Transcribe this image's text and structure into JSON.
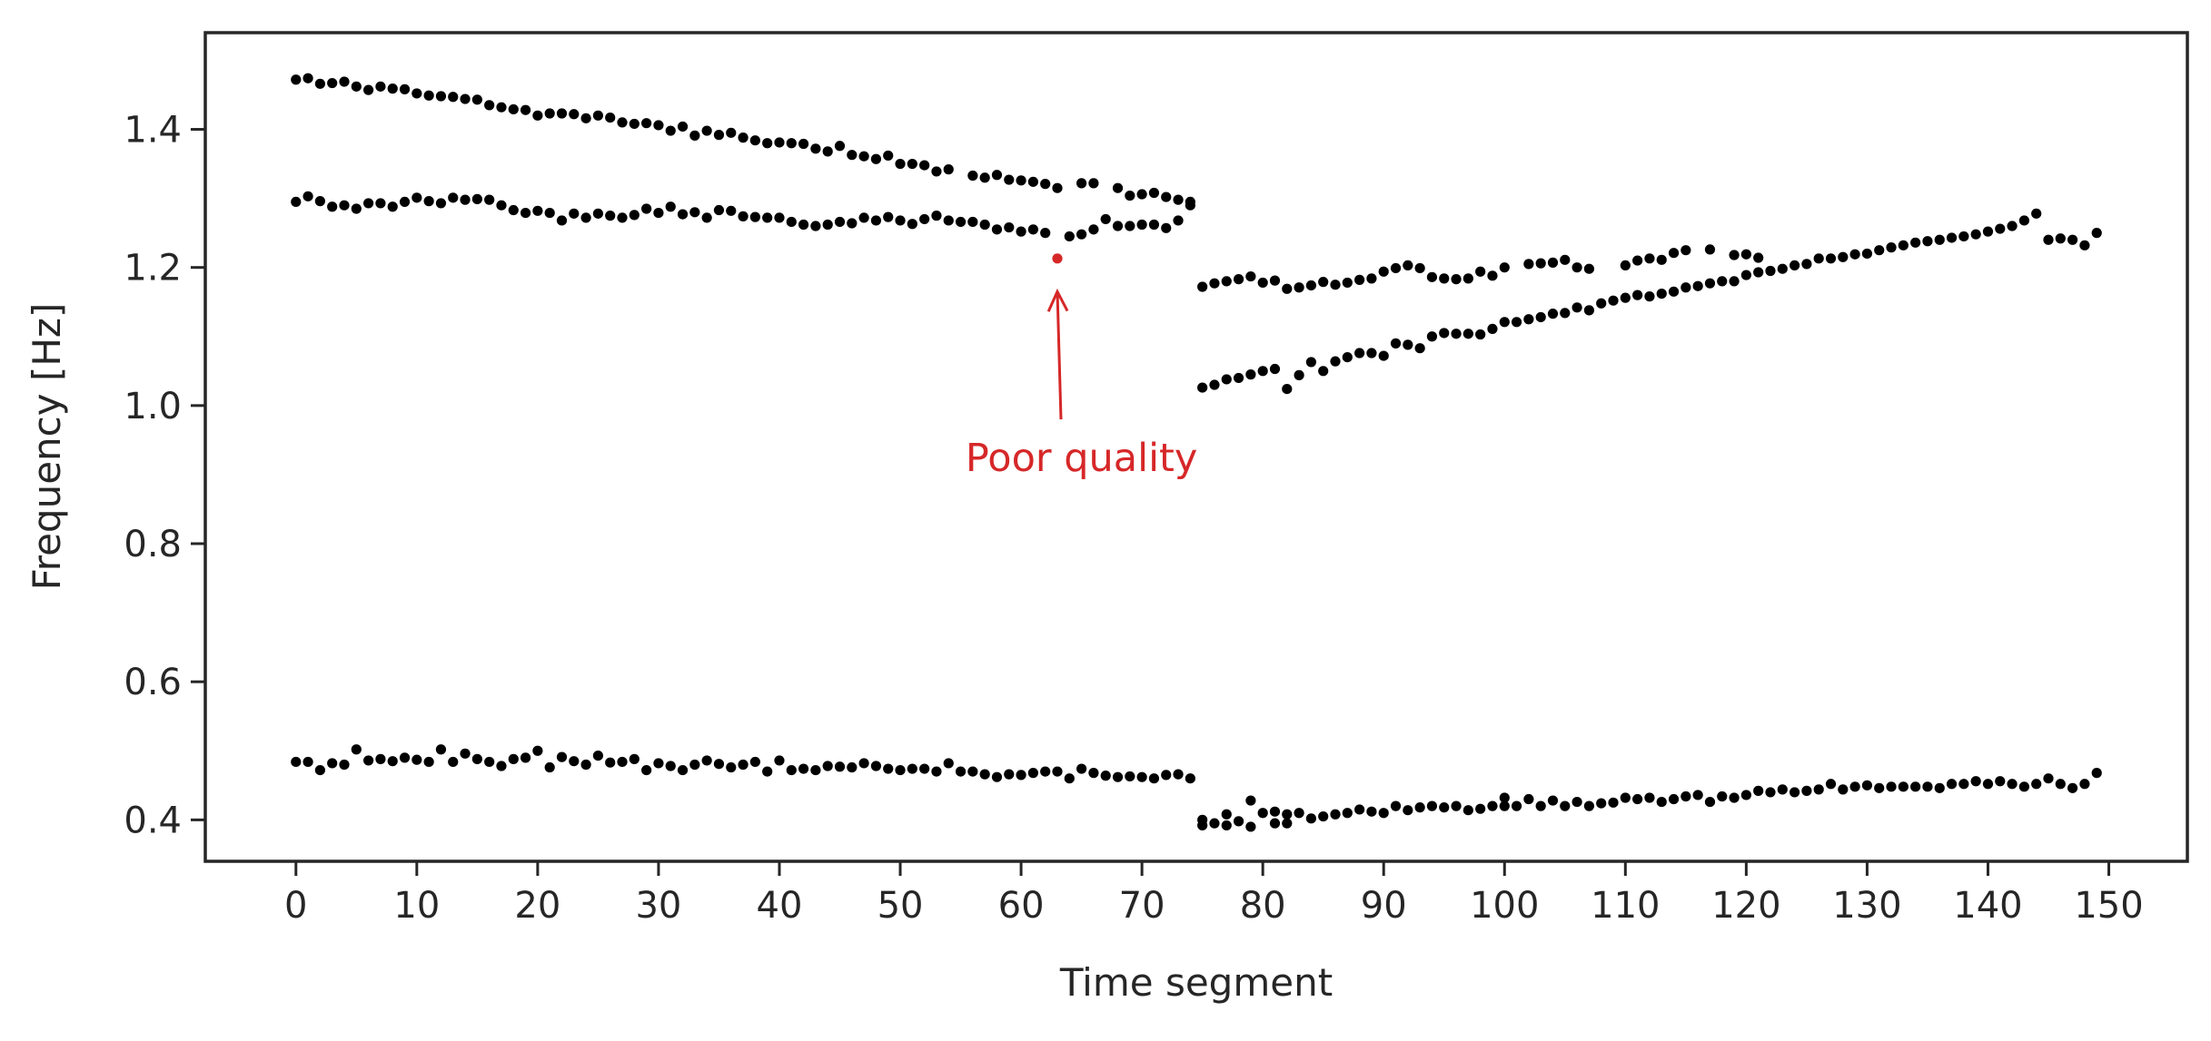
{
  "chart_data": {
    "type": "scatter",
    "title": "",
    "xlabel": "Time segment",
    "ylabel": "Frequency [Hz]",
    "xlim": [
      -7.5,
      156.5
    ],
    "ylim": [
      0.34,
      1.54
    ],
    "xticks": [
      0,
      10,
      20,
      30,
      40,
      50,
      60,
      70,
      80,
      90,
      100,
      110,
      120,
      130,
      140,
      150
    ],
    "xtick_labels": [
      "0",
      "10",
      "20",
      "30",
      "40",
      "50",
      "60",
      "70",
      "80",
      "90",
      "100",
      "110",
      "120",
      "130",
      "140",
      "150"
    ],
    "yticks": [
      0.4,
      0.6,
      0.8,
      1.0,
      1.2,
      1.4
    ],
    "ytick_labels": [
      "0.4",
      "0.6",
      "0.8",
      "1.0",
      "1.2",
      "1.4"
    ],
    "grid": false,
    "legend": "none",
    "point_color": "#000000",
    "series": [
      {
        "x": [
          0,
          1,
          2,
          3,
          4,
          5,
          6,
          7,
          8,
          9,
          10,
          11,
          12,
          13,
          14,
          15,
          16,
          17,
          18,
          19,
          20,
          21,
          22,
          23,
          24,
          25,
          26,
          27,
          28,
          29,
          30,
          31,
          32,
          33,
          34,
          35,
          36,
          37,
          38,
          39,
          40,
          41,
          42,
          43,
          44,
          45,
          46,
          47,
          48,
          49,
          50,
          51,
          52,
          53,
          54,
          55,
          56,
          57,
          58,
          59,
          60,
          61,
          62,
          63,
          64,
          65,
          66,
          67,
          68,
          69,
          70,
          71,
          72,
          73,
          74
        ],
        "y": [
          1.472,
          1.474,
          1.466,
          1.467,
          1.469,
          1.462,
          1.457,
          1.462,
          1.459,
          1.458,
          1.452,
          1.449,
          1.448,
          1.447,
          1.444,
          1.443,
          1.435,
          1.432,
          1.429,
          1.428,
          1.42,
          1.423,
          1.423,
          1.422,
          1.416,
          1.42,
          1.417,
          1.41,
          1.408,
          1.409,
          1.406,
          1.398,
          1.404,
          1.391,
          1.398,
          1.392,
          1.395,
          1.388,
          1.384,
          1.38,
          1.381,
          1.38,
          1.379,
          1.372,
          1.368,
          1.376,
          1.363,
          1.361,
          1.357,
          1.362,
          1.35,
          1.35,
          1.348,
          1.339,
          1.342,
          null,
          1.333,
          1.33,
          1.334,
          1.327,
          1.326,
          1.324,
          1.321,
          1.315,
          null,
          1.322,
          1.322,
          null,
          1.315,
          1.304,
          1.306,
          1.308,
          1.302,
          1.298,
          1.295
        ]
      },
      {
        "x": [
          0,
          1,
          2,
          3,
          4,
          5,
          6,
          7,
          8,
          9,
          10,
          11,
          12,
          13,
          14,
          15,
          16,
          17,
          18,
          19,
          20,
          21,
          22,
          23,
          24,
          25,
          26,
          27,
          28,
          29,
          30,
          31,
          32,
          33,
          34,
          35,
          36,
          37,
          38,
          39,
          40,
          41,
          42,
          43,
          44,
          45,
          46,
          47,
          48,
          49,
          50,
          51,
          52,
          53,
          54,
          55,
          56,
          57,
          58,
          59,
          60,
          61,
          62,
          64,
          65,
          66,
          67,
          68,
          69,
          70,
          71,
          72,
          73,
          74
        ],
        "y": [
          1.295,
          1.303,
          1.296,
          1.288,
          1.29,
          1.285,
          1.293,
          1.293,
          1.288,
          1.295,
          1.301,
          1.296,
          1.293,
          1.301,
          1.298,
          1.299,
          1.298,
          1.29,
          1.283,
          1.279,
          1.282,
          1.279,
          1.268,
          1.278,
          1.272,
          1.278,
          1.275,
          1.272,
          1.276,
          1.285,
          1.279,
          1.288,
          1.277,
          1.28,
          1.272,
          1.283,
          1.282,
          1.274,
          1.273,
          1.272,
          1.272,
          1.266,
          1.262,
          1.26,
          1.262,
          1.266,
          1.264,
          1.272,
          1.268,
          1.273,
          1.268,
          1.263,
          1.27,
          1.275,
          1.268,
          1.266,
          1.266,
          1.262,
          1.255,
          1.258,
          1.252,
          1.255,
          1.25,
          1.245,
          1.248,
          1.255,
          1.27,
          1.26,
          1.26,
          1.262,
          1.262,
          1.257,
          1.268,
          1.29
        ]
      },
      {
        "x": [
          75,
          76,
          77,
          78,
          79,
          80,
          81,
          82,
          83,
          84,
          85,
          86,
          87,
          88,
          89,
          90,
          91,
          92,
          93,
          94,
          95,
          96,
          97,
          98,
          99,
          100,
          102,
          103,
          104,
          105,
          106,
          107,
          110,
          111,
          112,
          113,
          114,
          115,
          117,
          119,
          120,
          121
        ],
        "y": [
          1.172,
          1.177,
          1.18,
          1.183,
          1.187,
          1.178,
          1.181,
          1.169,
          1.171,
          1.174,
          1.179,
          1.175,
          1.178,
          1.182,
          1.184,
          1.194,
          1.199,
          1.203,
          1.199,
          1.186,
          1.184,
          1.183,
          1.184,
          1.194,
          1.188,
          1.2,
          1.205,
          1.206,
          1.207,
          1.211,
          1.2,
          1.198,
          1.203,
          1.21,
          1.213,
          1.211,
          1.221,
          1.225,
          1.226,
          1.218,
          1.219,
          1.214
        ]
      },
      {
        "x": [
          75,
          76,
          77,
          78,
          79,
          80,
          81,
          82,
          83,
          84,
          85,
          86,
          87,
          88,
          89,
          90,
          91,
          92,
          93,
          94,
          95,
          96,
          97,
          98,
          99,
          100,
          101,
          102,
          103,
          104,
          105,
          106,
          107,
          108,
          109,
          110,
          111,
          112,
          113,
          114,
          115,
          116,
          117,
          118,
          119,
          120,
          121,
          122,
          123,
          124,
          125,
          126,
          127,
          128,
          129,
          130,
          131,
          132,
          133,
          134,
          135,
          136,
          137,
          138,
          139,
          140,
          141,
          142,
          143,
          144,
          145,
          146,
          147,
          148,
          149
        ],
        "y": [
          1.026,
          1.03,
          1.038,
          1.04,
          1.045,
          1.05,
          1.053,
          1.024,
          1.044,
          1.063,
          1.05,
          1.064,
          1.07,
          1.076,
          1.076,
          1.072,
          1.09,
          1.088,
          1.083,
          1.1,
          1.105,
          1.104,
          1.104,
          1.103,
          1.111,
          1.121,
          1.121,
          1.125,
          1.128,
          1.133,
          1.134,
          1.142,
          1.138,
          1.148,
          1.152,
          1.156,
          1.16,
          1.158,
          1.162,
          1.165,
          1.171,
          1.173,
          1.177,
          1.18,
          1.18,
          1.189,
          1.193,
          1.195,
          1.198,
          1.203,
          1.205,
          1.213,
          1.213,
          1.215,
          1.219,
          1.22,
          1.225,
          1.229,
          1.232,
          1.236,
          1.238,
          1.24,
          1.243,
          1.245,
          1.248,
          1.252,
          1.256,
          1.26,
          1.268,
          1.278,
          1.24,
          1.242,
          1.24,
          1.232,
          1.25
        ]
      },
      {
        "x": [
          0,
          1,
          2,
          3,
          4,
          5,
          6,
          7,
          8,
          9,
          10,
          11,
          12,
          13,
          14,
          15,
          16,
          17,
          18,
          19,
          20,
          21,
          22,
          23,
          24,
          25,
          26,
          27,
          28,
          29,
          30,
          31,
          32,
          33,
          34,
          35,
          36,
          37,
          38,
          39,
          40,
          41,
          42,
          43,
          44,
          45,
          46,
          47,
          48,
          49,
          50,
          51,
          52,
          53,
          54,
          55,
          56,
          57,
          58,
          59,
          60,
          61,
          62,
          63,
          64,
          65,
          66,
          67,
          68,
          69,
          70,
          71,
          72,
          73,
          74
        ],
        "y": [
          0.484,
          0.484,
          0.472,
          0.482,
          0.48,
          0.502,
          0.486,
          0.488,
          0.485,
          0.49,
          0.487,
          0.484,
          0.502,
          0.484,
          0.496,
          0.488,
          0.484,
          0.478,
          0.488,
          0.49,
          0.5,
          0.476,
          0.491,
          0.485,
          0.48,
          0.493,
          0.483,
          0.484,
          0.488,
          0.472,
          0.482,
          0.478,
          0.472,
          0.48,
          0.486,
          0.481,
          0.476,
          0.48,
          0.484,
          0.47,
          0.486,
          0.472,
          0.474,
          0.472,
          0.478,
          0.477,
          0.476,
          0.482,
          0.478,
          0.474,
          0.472,
          0.474,
          0.474,
          0.47,
          0.482,
          0.47,
          0.47,
          0.466,
          0.462,
          0.466,
          0.465,
          0.468,
          0.47,
          0.47,
          0.46,
          0.474,
          0.468,
          0.464,
          0.462,
          0.463,
          0.462,
          0.46,
          0.465,
          0.466,
          0.46
        ]
      },
      {
        "x": [
          75,
          76,
          77,
          78,
          79,
          80,
          81,
          82,
          83,
          84,
          85,
          86,
          87,
          88,
          89,
          90,
          91,
          92,
          93,
          94,
          95,
          96,
          97,
          98,
          99,
          100,
          101,
          102,
          103,
          104,
          105,
          106,
          107,
          108,
          109,
          110,
          111,
          112,
          113,
          114,
          115,
          116,
          117,
          118,
          119,
          120,
          121,
          122,
          123,
          124,
          125,
          126,
          127,
          128,
          129,
          130,
          131,
          132,
          133,
          134,
          135,
          136,
          137,
          138,
          139,
          140,
          141,
          142,
          143,
          144,
          145,
          146,
          147,
          148,
          149
        ],
        "y": [
          0.392,
          0.395,
          0.392,
          0.398,
          0.39,
          0.41,
          0.412,
          0.408,
          0.41,
          0.402,
          0.405,
          0.408,
          0.41,
          0.415,
          0.412,
          0.41,
          0.42,
          0.414,
          0.418,
          0.42,
          0.418,
          0.42,
          0.414,
          0.416,
          0.42,
          0.432,
          0.42,
          0.43,
          0.42,
          0.428,
          0.42,
          0.426,
          0.42,
          0.424,
          0.425,
          0.432,
          0.43,
          0.432,
          0.426,
          0.43,
          0.434,
          0.436,
          0.426,
          0.434,
          0.432,
          0.436,
          0.442,
          0.44,
          0.444,
          0.44,
          0.442,
          0.444,
          0.452,
          0.444,
          0.448,
          0.45,
          0.446,
          0.448,
          0.448,
          0.448,
          0.448,
          0.446,
          0.452,
          0.452,
          0.456,
          0.452,
          0.456,
          0.452,
          0.448,
          0.452,
          0.46,
          0.452,
          0.446,
          0.452,
          0.468
        ]
      }
    ],
    "extra_points": [
      {
        "x": 75,
        "y": 0.4
      },
      {
        "x": 77,
        "y": 0.408
      },
      {
        "x": 79,
        "y": 0.428
      },
      {
        "x": 81,
        "y": 0.395
      },
      {
        "x": 82,
        "y": 0.395
      },
      {
        "x": 100,
        "y": 0.42
      }
    ],
    "highlight_point": {
      "x": 63,
      "y": 1.213,
      "color": "#d62728"
    },
    "annotation": {
      "text": "Poor quality",
      "color": "#d62728",
      "text_x": 65,
      "text_y": 0.905,
      "arrow_from": [
        63.3,
        0.98
      ],
      "arrow_to": [
        63.0,
        1.165
      ]
    }
  }
}
